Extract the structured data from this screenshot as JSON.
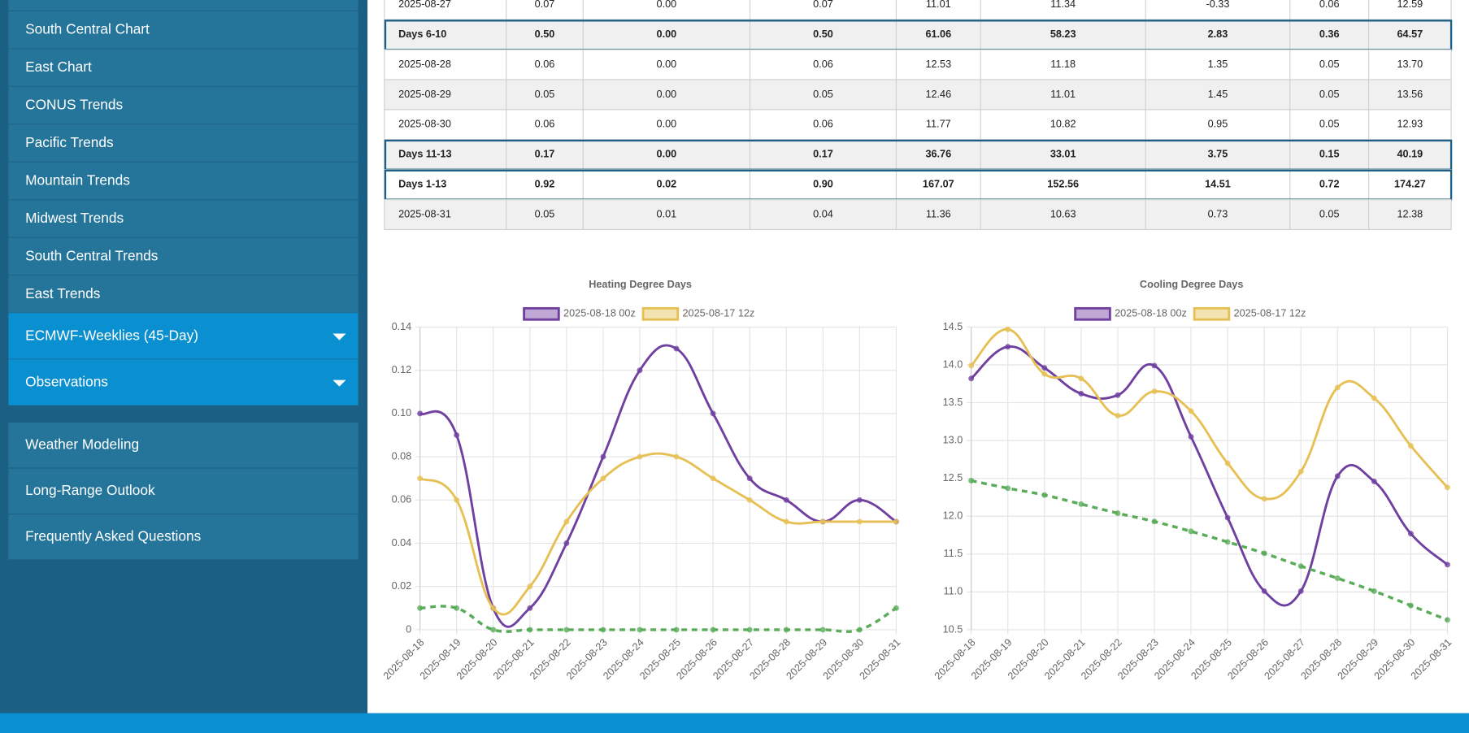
{
  "sidebar": {
    "items": [
      "South Central Chart",
      "East Chart",
      "CONUS Trends",
      "Pacific Trends",
      "Mountain Trends",
      "Midwest Trends",
      "South Central Trends",
      "East Trends"
    ],
    "expandable": [
      "ECMWF-Weeklies (45-Day)",
      "Observations"
    ],
    "links": [
      "Weather Modeling",
      "Long-Range Outlook",
      "Frequently Asked Questions"
    ]
  },
  "table": {
    "rows": [
      [
        "2025-08-27",
        "0.07",
        "0.00",
        "0.07",
        "11.01",
        "11.34",
        "-0.33",
        "0.06",
        "12.59"
      ],
      [
        "Days 6-10",
        "0.50",
        "0.00",
        "0.50",
        "61.06",
        "58.23",
        "2.83",
        "0.36",
        "64.57"
      ],
      [
        "2025-08-28",
        "0.06",
        "0.00",
        "0.06",
        "12.53",
        "11.18",
        "1.35",
        "0.05",
        "13.70"
      ],
      [
        "2025-08-29",
        "0.05",
        "0.00",
        "0.05",
        "12.46",
        "11.01",
        "1.45",
        "0.05",
        "13.56"
      ],
      [
        "2025-08-30",
        "0.06",
        "0.00",
        "0.06",
        "11.77",
        "10.82",
        "0.95",
        "0.05",
        "12.93"
      ],
      [
        "Days 11-13",
        "0.17",
        "0.00",
        "0.17",
        "36.76",
        "33.01",
        "3.75",
        "0.15",
        "40.19"
      ],
      [
        "Days 1-13",
        "0.92",
        "0.02",
        "0.90",
        "167.07",
        "152.56",
        "14.51",
        "0.72",
        "174.27"
      ],
      [
        "2025-08-31",
        "0.05",
        "0.01",
        "0.04",
        "11.36",
        "10.63",
        "0.73",
        "0.05",
        "12.38"
      ]
    ]
  },
  "chart_data": [
    {
      "type": "line",
      "title": "Heating Degree Days",
      "categories": [
        "2025-08-18",
        "2025-08-19",
        "2025-08-20",
        "2025-08-21",
        "2025-08-22",
        "2025-08-23",
        "2025-08-24",
        "2025-08-25",
        "2025-08-26",
        "2025-08-27",
        "2025-08-28",
        "2025-08-29",
        "2025-08-30",
        "2025-08-31"
      ],
      "series": [
        {
          "name": "2025-08-18 00z",
          "color": "#7040a0",
          "values": [
            0.1,
            0.09,
            0.01,
            0.01,
            0.04,
            0.08,
            0.12,
            0.13,
            0.1,
            0.07,
            0.06,
            0.05,
            0.06,
            0.05
          ]
        },
        {
          "name": "2025-08-17 12z",
          "color": "#e6c055",
          "values": [
            0.07,
            0.06,
            0.01,
            0.02,
            0.05,
            0.07,
            0.08,
            0.08,
            0.07,
            0.06,
            0.05,
            0.05,
            0.05,
            0.05
          ]
        },
        {
          "color": "#5aac5a",
          "dash": true,
          "values": [
            0.01,
            0.01,
            0,
            0,
            0,
            0,
            0,
            0,
            0,
            0,
            0,
            0,
            0,
            0.01
          ]
        }
      ],
      "ylim": [
        0,
        0.14
      ],
      "yticks": [
        0,
        0.02,
        0.04,
        0.06,
        0.08,
        {
          "value": 0.1,
          "label": "0.10"
        },
        0.12,
        0.14
      ],
      "grid": true
    },
    {
      "type": "line",
      "title": "Cooling Degree Days",
      "categories": [
        "2025-08-18",
        "2025-08-19",
        "2025-08-20",
        "2025-08-21",
        "2025-08-22",
        "2025-08-23",
        "2025-08-24",
        "2025-08-25",
        "2025-08-26",
        "2025-08-27",
        "2025-08-28",
        "2025-08-29",
        "2025-08-30",
        "2025-08-31"
      ],
      "series": [
        {
          "name": "2025-08-18 00z",
          "color": "#7040a0",
          "values": [
            13.82,
            14.24,
            13.96,
            13.62,
            13.6,
            13.99,
            13.05,
            11.98,
            11.01,
            11.01,
            12.53,
            12.46,
            11.77,
            11.36
          ]
        },
        {
          "name": "2025-08-17 12z",
          "color": "#e6c055",
          "values": [
            13.99,
            14.47,
            13.88,
            13.82,
            13.33,
            13.65,
            13.39,
            12.7,
            12.23,
            12.59,
            13.7,
            13.56,
            12.93,
            12.38
          ]
        },
        {
          "color": "#5aac5a",
          "dash": true,
          "values": [
            12.47,
            12.37,
            12.28,
            12.16,
            12.04,
            11.93,
            11.8,
            11.66,
            11.51,
            11.34,
            11.18,
            11.01,
            10.82,
            10.63
          ]
        }
      ],
      "ylim": [
        10.5,
        14.5
      ],
      "yticks": [
        10.5,
        {
          "value": 11,
          "label": "11.0"
        },
        11.5,
        {
          "value": 12,
          "label": "12.0"
        },
        12.5,
        {
          "value": 13,
          "label": "13.0"
        },
        13.5,
        {
          "value": 14,
          "label": "14.0"
        },
        14.5
      ],
      "grid": true
    }
  ]
}
